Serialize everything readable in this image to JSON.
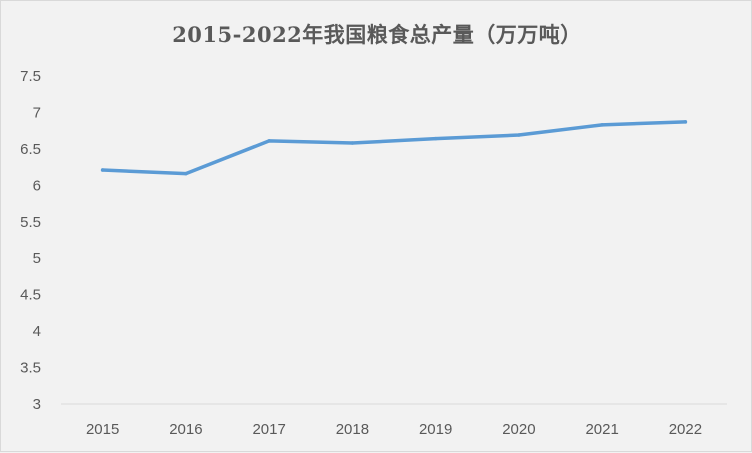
{
  "chart_data": {
    "type": "line",
    "title": "2015-2022年我国粮食总产量（万万吨）",
    "xlabel": "",
    "ylabel": "",
    "categories": [
      "2015",
      "2016",
      "2017",
      "2018",
      "2019",
      "2020",
      "2021",
      "2022"
    ],
    "series": [
      {
        "values": [
          6.21,
          6.16,
          6.61,
          6.58,
          6.64,
          6.69,
          6.83,
          6.87
        ]
      }
    ],
    "ylim": [
      3,
      7.5
    ],
    "yticks": [
      "3",
      "3.5",
      "4",
      "4.5",
      "5",
      "5.5",
      "6",
      "6.5",
      "7",
      "7.5"
    ],
    "grid": false,
    "legend": "none",
    "line_color": "#5b9bd5",
    "axis_color": "#d9d9d9",
    "text_color": "#595959",
    "background": "#f2f2f2"
  }
}
